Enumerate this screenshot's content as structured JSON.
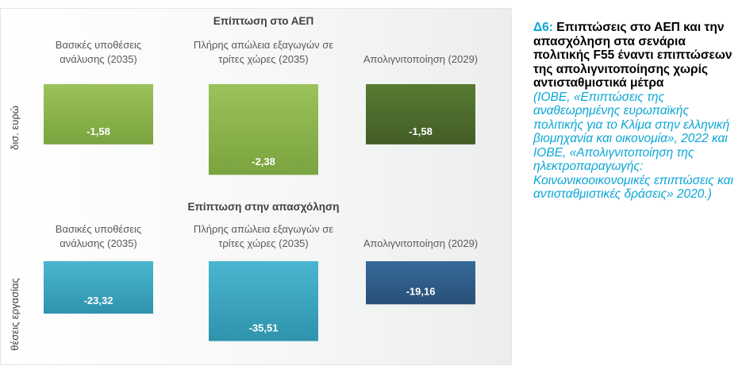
{
  "chart_data": [
    {
      "type": "bar",
      "title": "Επίπτωση στο ΑΕΠ",
      "ylabel": "δισ. ευρώ",
      "categories": [
        "Βασικές υποθέσεις ανάλυσης (2035)",
        "Πλήρης απώλεια εξαγωγών σε τρίτες χώρες (2035)",
        "Απολιγνιτοποίηση (2029)"
      ],
      "values": [
        -1.58,
        -2.38,
        -1.58
      ],
      "value_labels": [
        "-1,58",
        "-2,38",
        "-1,58"
      ],
      "ylim": [
        -2.5,
        0
      ],
      "grid": false,
      "legend": "none",
      "colors": [
        "#8bb34c",
        "#8bb34c",
        "#4e6b2b"
      ]
    },
    {
      "type": "bar",
      "title": "Επίπτωση στην απασχόληση",
      "ylabel": "θέσεις εργασίας",
      "categories": [
        "Βασικές υποθέσεις ανάλυσης (2035)",
        "Πλήρης απώλεια εξαγωγών σε τρίτες χώρες (2035)",
        "Απολιγνιτοποίηση (2029)"
      ],
      "values": [
        -23.32,
        -35.51,
        -19.16
      ],
      "value_labels": [
        "-23,32",
        "-35,51",
        "-19,16"
      ],
      "ylim": [
        -37,
        0
      ],
      "grid": false,
      "legend": "none",
      "colors": [
        "#3aa6c0",
        "#3aa6c0",
        "#2f5d8c"
      ]
    }
  ],
  "caption": {
    "lead": "Δ6:",
    "title": "Επιπτώσεις στο ΑΕΠ και την απασχόληση στα σενάρια πολιτικής F55 έναντι επιπτώσεων της απολιγνιτοποίησης χωρίς αντισταθμιστικά μέτρα",
    "source": "(ΙΟΒΕ, «Επιπτώσεις της αναθεωρημένης ευρωπαϊκής πολιτικής για το Κλίμα στην ελληνική βιομηχανία και οικονομία», 2022 και ΙΟΒΕ, «Απολιγνιτοποίηση της ηλεκτροπαραγωγής: Κοινωνικοοικονομικές επιπτώσεις και αντισταθμιστικές δράσεις» 2020.)"
  }
}
